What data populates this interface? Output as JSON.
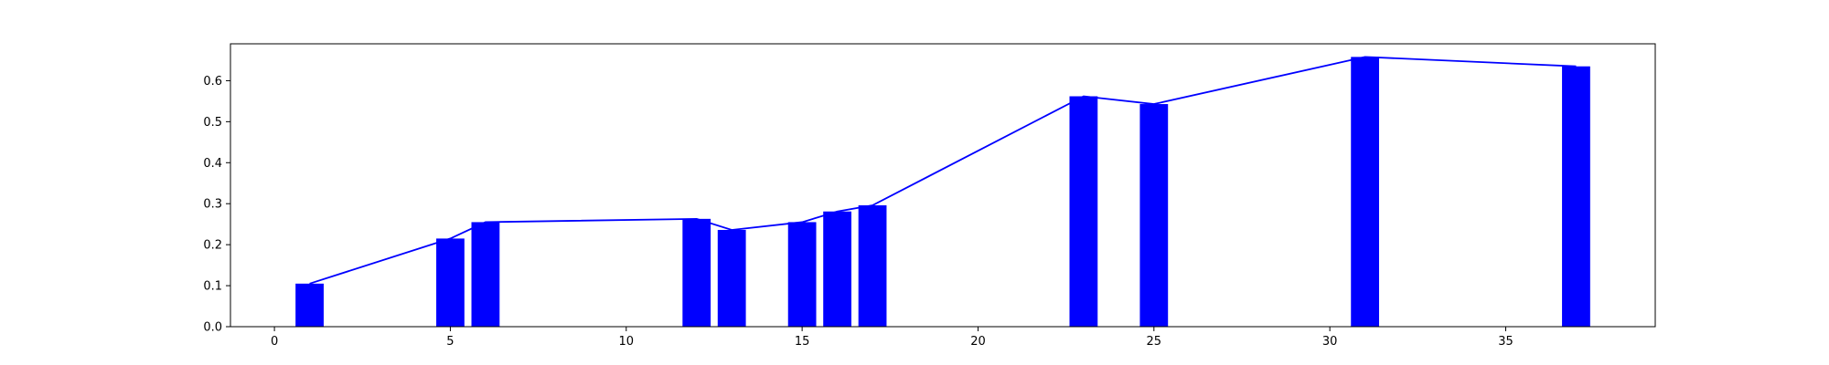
{
  "chart_data": {
    "type": "bar",
    "title": "",
    "xlabel": "",
    "ylabel": "",
    "xlim": [
      -1.25,
      39.25
    ],
    "ylim": [
      0,
      0.69
    ],
    "xticks": [
      0,
      5,
      10,
      15,
      20,
      25,
      30,
      35
    ],
    "xtick_labels": [
      "0",
      "5",
      "10",
      "15",
      "20",
      "25",
      "30",
      "35"
    ],
    "yticks": [
      0.0,
      0.1,
      0.2,
      0.3,
      0.4,
      0.5,
      0.6
    ],
    "ytick_labels": [
      "0.0",
      "0.1",
      "0.2",
      "0.3",
      "0.4",
      "0.5",
      "0.6"
    ],
    "grid": false,
    "bar_width": 0.8,
    "x": [
      1,
      5,
      6,
      12,
      13,
      15,
      16,
      17,
      23,
      25,
      31,
      37
    ],
    "values": [
      0.105,
      0.215,
      0.255,
      0.263,
      0.236,
      0.255,
      0.281,
      0.296,
      0.562,
      0.543,
      0.658,
      0.635
    ],
    "bar_color": "#0000ff",
    "line_color": "#0000ff",
    "overlay": "line connecting the tops of the bars"
  }
}
